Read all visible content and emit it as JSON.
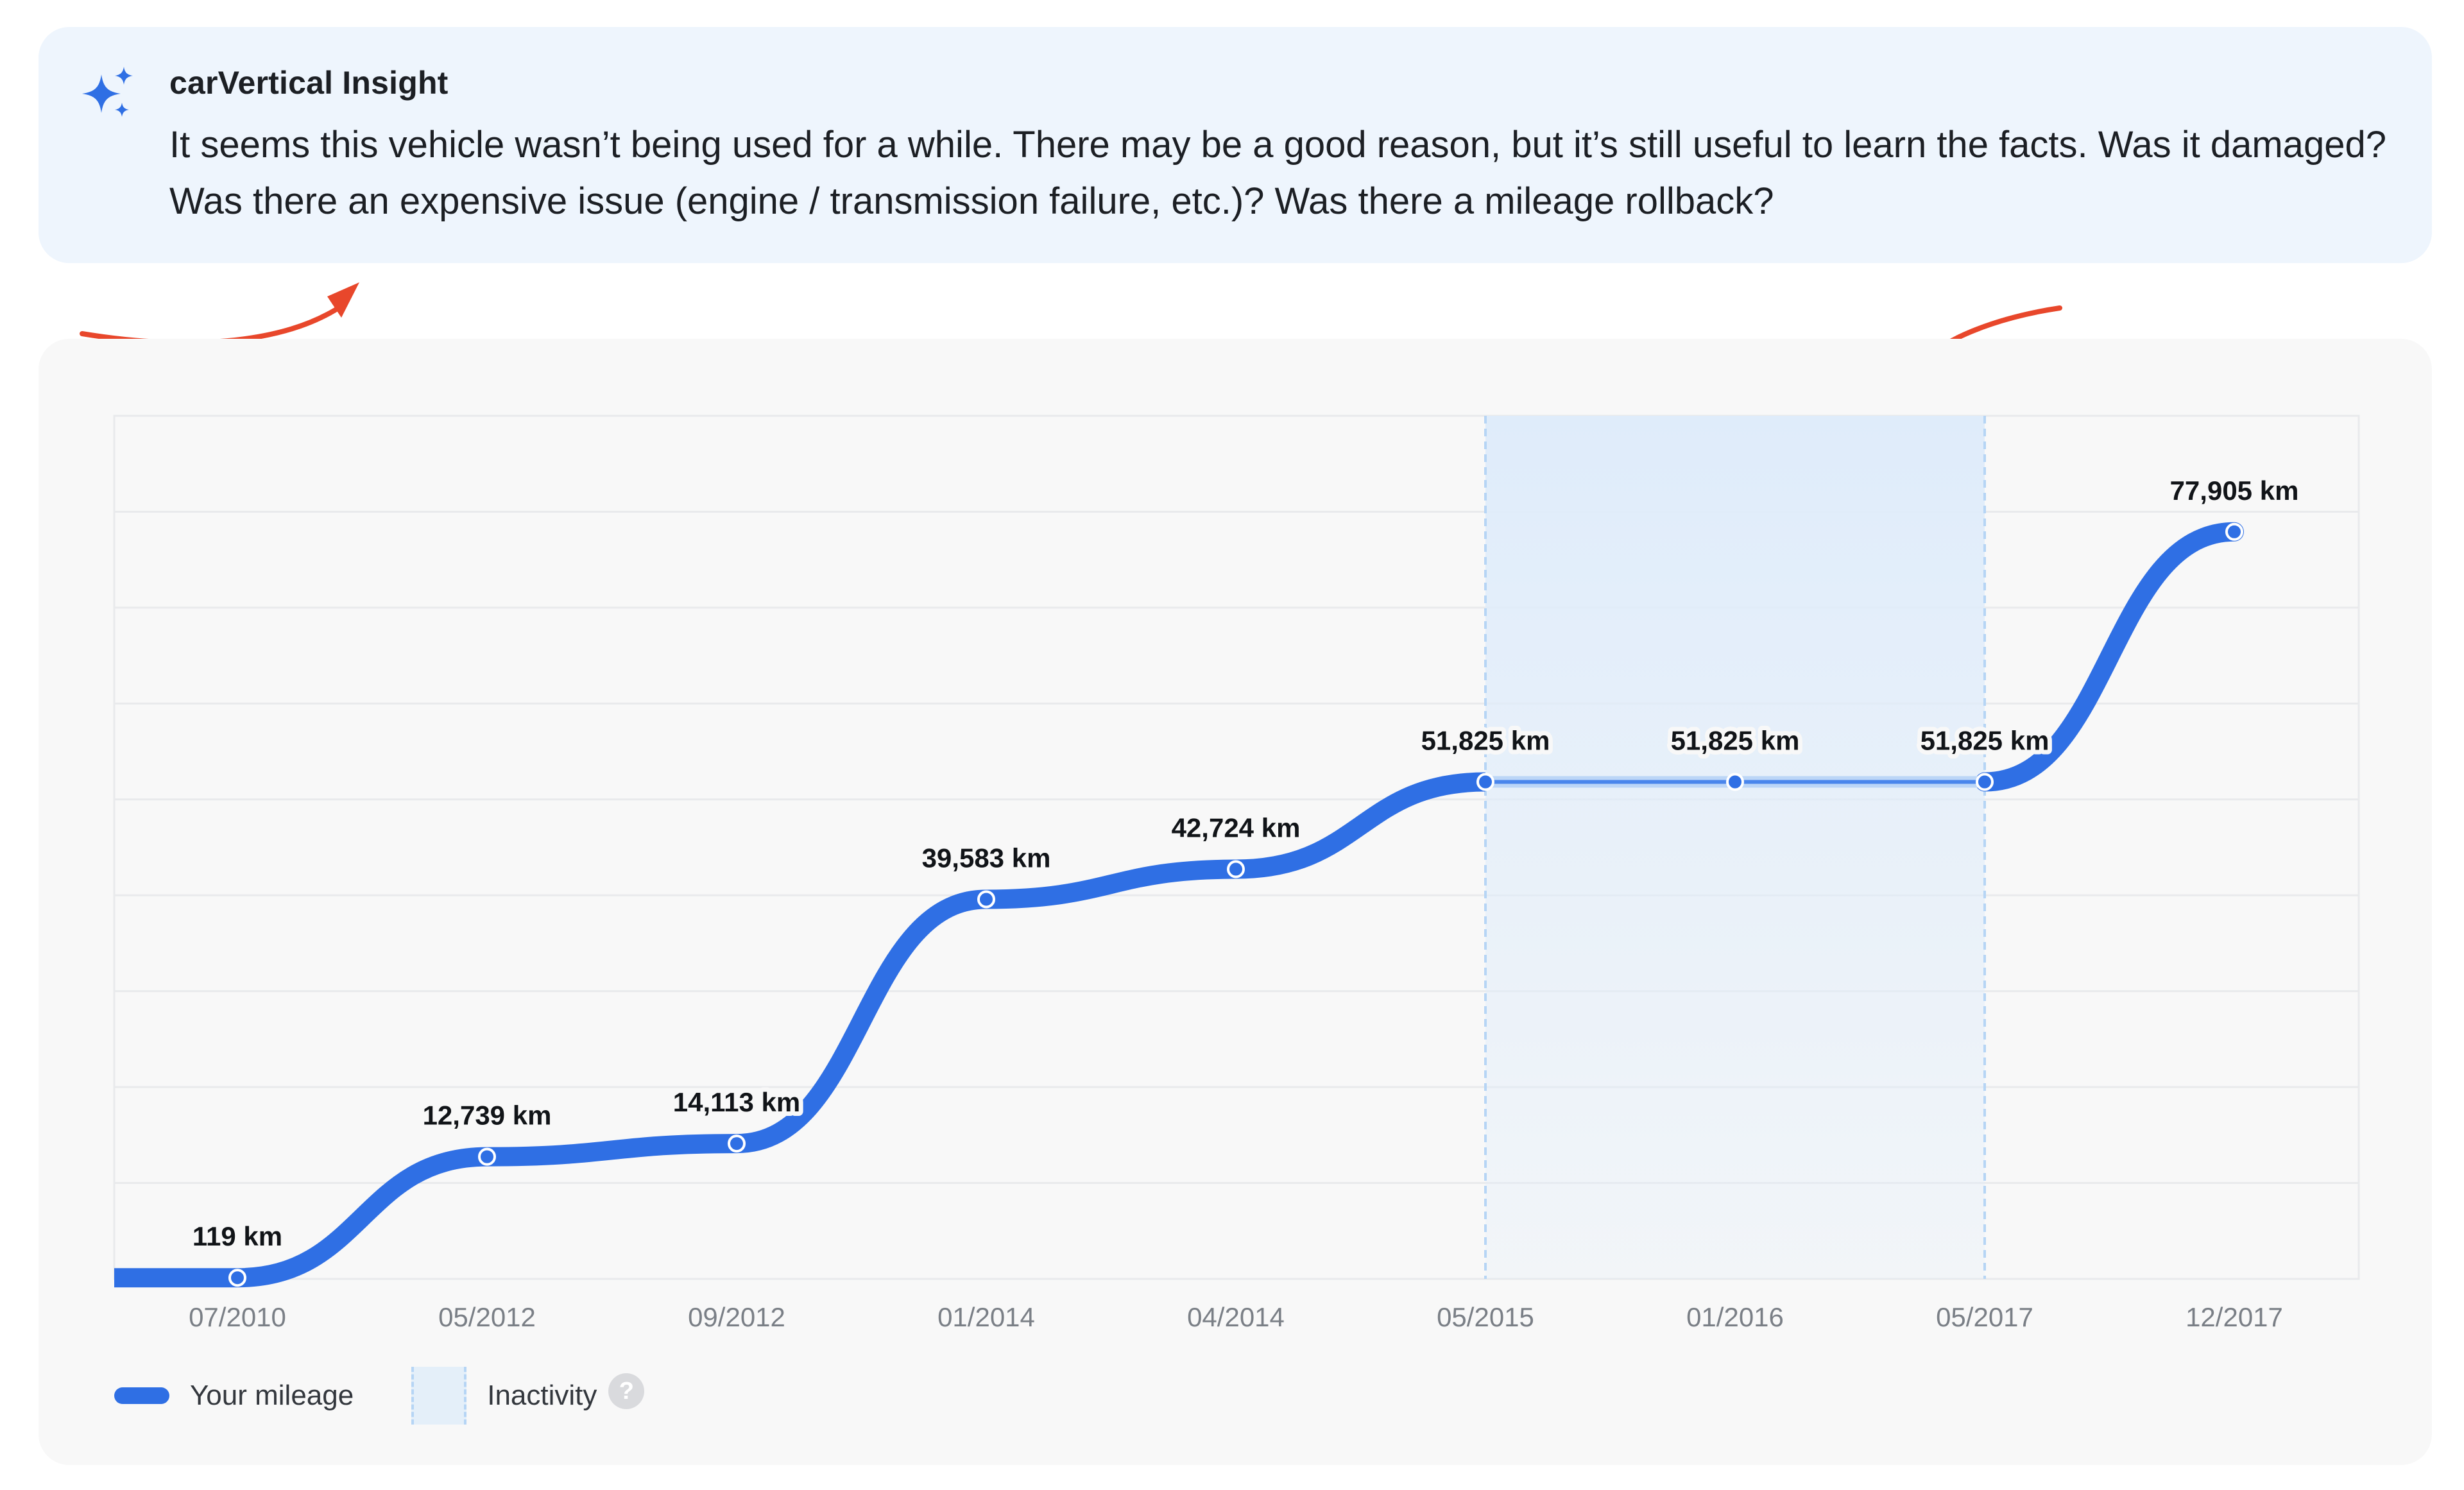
{
  "insight": {
    "title": "carVertical Insight",
    "text": "It seems this vehicle wasn’t being used for a while. There may be a good reason, but it’s still useful to learn the facts. Was it damaged? Was there an expensive issue (engine / transmission failure, etc.)? Was there a mileage rollback?",
    "icon": "sparkles-icon",
    "icon_color": "#2f6fe4"
  },
  "annotations": {
    "arrow_color": "#e8472b"
  },
  "chart_data": {
    "type": "line",
    "categories": [
      "07/2010",
      "05/2012",
      "09/2012",
      "01/2014",
      "04/2014",
      "05/2015",
      "01/2016",
      "05/2017",
      "12/2017"
    ],
    "values": [
      119,
      12739,
      14113,
      39583,
      42724,
      51825,
      51825,
      51825,
      77905
    ],
    "point_labels": [
      "119 km",
      "12,739 km",
      "14,113 km",
      "39,583 km",
      "42,724 km",
      "51,825 km",
      "51,825 km",
      "51,825 km",
      "77,905 km"
    ],
    "ylim": [
      0,
      90000
    ],
    "grid": true,
    "inactivity": {
      "from": "05/2015",
      "to": "05/2017"
    },
    "series": [
      {
        "name": "Your mileage",
        "values": [
          119,
          12739,
          14113,
          39583,
          42724,
          51825,
          51825,
          51825,
          77905
        ]
      }
    ],
    "colors": {
      "line": "#2f6fe4",
      "inactive_line": "#4a86ec",
      "inactivity_fill": "#dfecfa",
      "inactivity_border": "#b6d5f5",
      "grid": "#e9eaec",
      "tick_label": "#7a7f86"
    },
    "legend": {
      "position": "bottom-left",
      "mileage_label": "Your mileage",
      "inactivity_label": "Inactivity",
      "help_glyph": "?"
    }
  }
}
